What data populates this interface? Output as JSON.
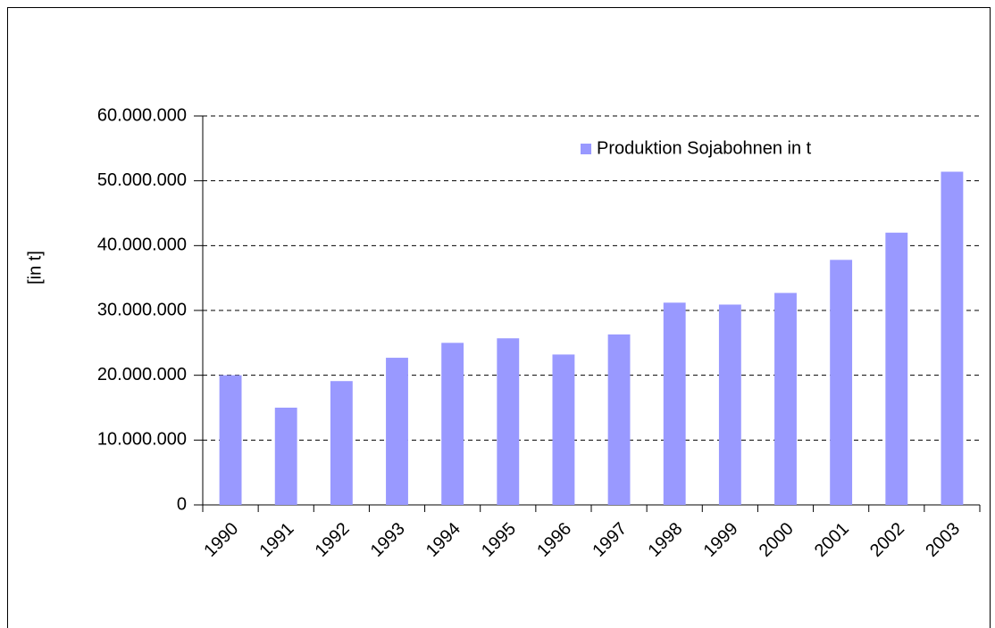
{
  "chart_data": {
    "type": "bar",
    "y_label": "[in t]",
    "categories": [
      "1990",
      "1991",
      "1992",
      "1993",
      "1994",
      "1995",
      "1996",
      "1997",
      "1998",
      "1999",
      "2000",
      "2001",
      "2002",
      "2003"
    ],
    "series": [
      {
        "name": "Produktion Sojabohnen in t",
        "color": "#9999ff",
        "values": [
          20000000,
          15000000,
          19100000,
          22700000,
          25000000,
          25700000,
          23200000,
          26300000,
          31200000,
          30900000,
          32700000,
          37800000,
          42000000,
          51400000
        ]
      }
    ],
    "ylim": [
      0,
      60000000
    ],
    "yticks": [
      0,
      {
        "value": 10000000,
        "label": "10.000.000"
      },
      {
        "value": 20000000,
        "label": "20.000.000"
      },
      {
        "value": 30000000,
        "label": "30.000.000"
      },
      {
        "value": 40000000,
        "label": "40.000.000"
      },
      {
        "value": 50000000,
        "label": "50.000.000"
      },
      {
        "value": 60000000,
        "label": "60.000.000"
      }
    ],
    "grid": true,
    "legend": "top-right"
  }
}
